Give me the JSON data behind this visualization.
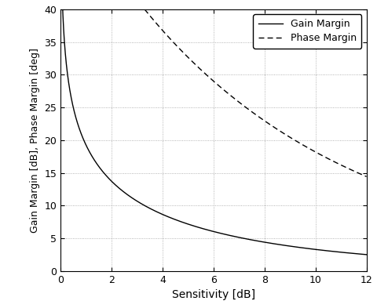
{
  "title": "",
  "xlabel": "Sensitivity [dB]",
  "ylabel": "Gain Margin [dB], Phase Margin [deg]",
  "xlim": [
    0,
    12
  ],
  "ylim": [
    0,
    40
  ],
  "xticks": [
    0,
    2,
    4,
    6,
    8,
    10,
    12
  ],
  "yticks": [
    0,
    5,
    10,
    15,
    20,
    25,
    30,
    35,
    40
  ],
  "line_color": "#000000",
  "background_color": "#ffffff",
  "grid_color": "#888888",
  "legend_entries": [
    "Gain Margin",
    "Phase Margin"
  ],
  "figsize": [
    4.81,
    3.93
  ],
  "dpi": 100
}
